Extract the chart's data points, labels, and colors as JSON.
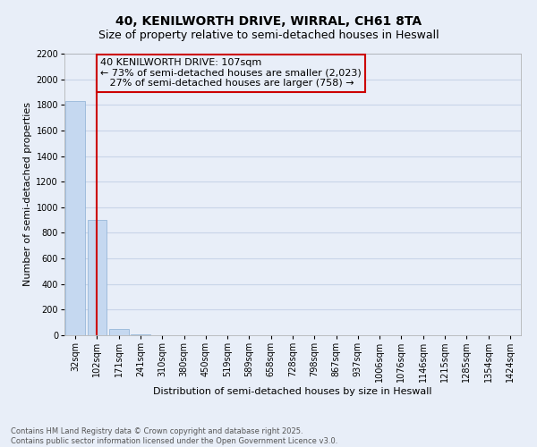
{
  "title": "40, KENILWORTH DRIVE, WIRRAL, CH61 8TA",
  "subtitle": "Size of property relative to semi-detached houses in Heswall",
  "xlabel": "Distribution of semi-detached houses by size in Heswall",
  "ylabel": "Number of semi-detached properties",
  "bar_labels": [
    "32sqm",
    "102sqm",
    "171sqm",
    "241sqm",
    "310sqm",
    "380sqm",
    "450sqm",
    "519sqm",
    "589sqm",
    "658sqm",
    "728sqm",
    "798sqm",
    "867sqm",
    "937sqm",
    "1006sqm",
    "1076sqm",
    "1146sqm",
    "1215sqm",
    "1285sqm",
    "1354sqm",
    "1424sqm"
  ],
  "bar_values": [
    1830,
    900,
    50,
    5,
    0,
    0,
    0,
    0,
    0,
    0,
    0,
    0,
    0,
    0,
    0,
    0,
    0,
    0,
    0,
    0,
    0
  ],
  "bar_color": "#c5d8f0",
  "bar_edge_color": "#8aafd4",
  "grid_color": "#c8d4e8",
  "background_color": "#e8eef8",
  "ylim": [
    0,
    2200
  ],
  "yticks": [
    0,
    200,
    400,
    600,
    800,
    1000,
    1200,
    1400,
    1600,
    1800,
    2000,
    2200
  ],
  "property_bin_index": 1,
  "vline_color": "#cc0000",
  "annotation_line1": "40 KENILWORTH DRIVE: 107sqm",
  "annotation_line2": "← 73% of semi-detached houses are smaller (2,023)",
  "annotation_line3": "   27% of semi-detached houses are larger (758) →",
  "annotation_box_color": "#cc0000",
  "footer_line1": "Contains HM Land Registry data © Crown copyright and database right 2025.",
  "footer_line2": "Contains public sector information licensed under the Open Government Licence v3.0.",
  "title_fontsize": 10,
  "subtitle_fontsize": 9,
  "axis_label_fontsize": 8,
  "tick_fontsize": 7,
  "annotation_fontsize": 8,
  "footer_fontsize": 6
}
